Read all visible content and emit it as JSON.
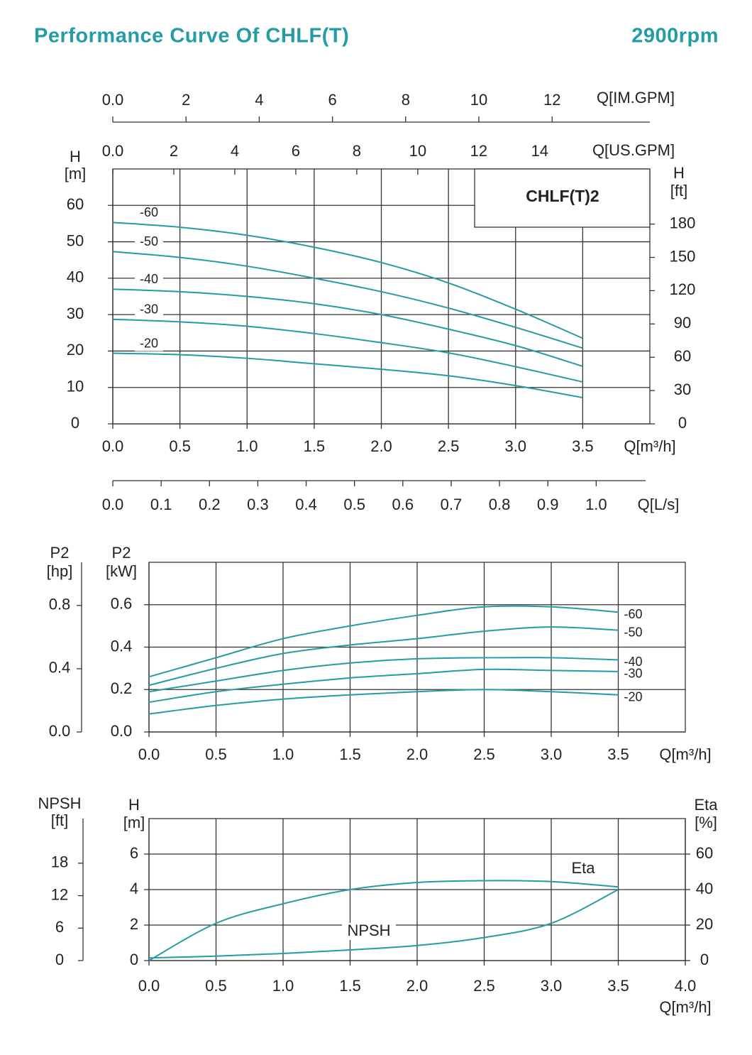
{
  "header": {
    "title": "Performance Curve Of CHLF(T)",
    "speed": "2900rpm"
  },
  "chart_data": [
    {
      "type": "line",
      "model": "CHLF(T)2",
      "grid": true,
      "color": "#239ca6",
      "xlabel": "Q[m³/h]",
      "xlim": [
        0,
        4
      ],
      "xticks": [
        {
          "value": 0,
          "label": "0.0"
        },
        0.5,
        {
          "value": 1,
          "label": "1.0"
        },
        1.5,
        {
          "value": 2,
          "label": "2.0"
        },
        2.5,
        {
          "value": 3,
          "label": "3.0"
        },
        3.5
      ],
      "ylabel": [
        "H",
        "[m]"
      ],
      "ylim": [
        0,
        70
      ],
      "yticks": [
        0,
        10,
        20,
        30,
        40,
        50,
        60
      ],
      "y2label": [
        "H",
        "[ft]"
      ],
      "y2lim": [
        0,
        229.66
      ],
      "y2ticks": [
        0,
        30,
        60,
        90,
        120,
        150,
        180
      ],
      "x2axes": [
        {
          "label": "Q[US.GPM]",
          "lim": [
            0,
            17.61
          ],
          "ticks": [
            {
              "value": 0,
              "label": "0.0"
            },
            2,
            4,
            6,
            8,
            10,
            12,
            14
          ]
        },
        {
          "label": "Q[IM.GPM]",
          "lim": [
            0,
            14.67
          ],
          "ticks": [
            {
              "value": 0,
              "label": "0.0"
            },
            2,
            4,
            6,
            8,
            10,
            12
          ]
        },
        {
          "label": "Q[L/s]",
          "lim": [
            0,
            1.111
          ],
          "ticks": [
            {
              "value": 0,
              "label": "0.0"
            },
            0.1,
            0.2,
            0.3,
            0.4,
            0.5,
            0.6,
            0.7,
            0.8,
            0.9,
            {
              "value": 1,
              "label": "1.0"
            }
          ]
        }
      ],
      "x": [
        0,
        0.5,
        1,
        1.5,
        2,
        2.5,
        3,
        3.5
      ],
      "series": [
        {
          "name": "-60",
          "values": [
            55.3,
            54,
            51.8,
            48.5,
            44.3,
            38.7,
            31.5,
            23.5
          ]
        },
        {
          "name": "-50",
          "values": [
            47.3,
            45.7,
            43.3,
            40,
            36.3,
            31.8,
            26.5,
            20.8
          ]
        },
        {
          "name": "-40",
          "values": [
            37,
            36.3,
            35,
            33,
            30,
            26,
            21.5,
            15.8
          ]
        },
        {
          "name": "-30",
          "values": [
            28.7,
            28,
            26.8,
            24.8,
            22.3,
            19.5,
            15.7,
            11.5
          ]
        },
        {
          "name": "-20",
          "values": [
            19.4,
            19,
            18,
            16.5,
            15,
            13.2,
            10.5,
            7.2
          ]
        }
      ]
    },
    {
      "type": "line",
      "grid": true,
      "color": "#239ca6",
      "xlabel": "Q[m³/h]",
      "xlim": [
        0,
        4
      ],
      "xticks": [
        {
          "value": 0,
          "label": "0.0"
        },
        0.5,
        {
          "value": 1,
          "label": "1.0"
        },
        1.5,
        {
          "value": 2,
          "label": "2.0"
        },
        2.5,
        {
          "value": 3,
          "label": "3.0"
        },
        3.5
      ],
      "ylabel": [
        "P2",
        "[kW]"
      ],
      "ylim": [
        0,
        0.8
      ],
      "yticks": [
        {
          "value": 0,
          "label": "0.0"
        },
        0.2,
        0.4,
        0.6
      ],
      "y2label": [
        "P2",
        "[hp]"
      ],
      "y2lim": [
        0,
        1.073
      ],
      "y2ticks": [
        {
          "value": 0,
          "label": "0.0"
        },
        0.4,
        0.8
      ],
      "x": [
        0,
        0.5,
        1,
        1.5,
        2,
        2.5,
        3,
        3.5
      ],
      "series": [
        {
          "name": "-60",
          "values": [
            0.26,
            0.35,
            0.44,
            0.5,
            0.55,
            0.59,
            0.59,
            0.565
          ]
        },
        {
          "name": "-50",
          "values": [
            0.22,
            0.3,
            0.37,
            0.41,
            0.44,
            0.475,
            0.495,
            0.48
          ]
        },
        {
          "name": "-40",
          "values": [
            0.19,
            0.24,
            0.29,
            0.325,
            0.345,
            0.35,
            0.35,
            0.34
          ]
        },
        {
          "name": "-30",
          "values": [
            0.14,
            0.19,
            0.225,
            0.255,
            0.275,
            0.295,
            0.29,
            0.285
          ]
        },
        {
          "name": "-20",
          "values": [
            0.085,
            0.125,
            0.155,
            0.175,
            0.19,
            0.2,
            0.19,
            0.175
          ]
        }
      ]
    },
    {
      "type": "line",
      "grid": true,
      "color": "#239ca6",
      "xlabel": "Q[m³/h]",
      "xlim": [
        0,
        4
      ],
      "xticks": [
        {
          "value": 0,
          "label": "0.0"
        },
        0.5,
        {
          "value": 1,
          "label": "1.0"
        },
        1.5,
        {
          "value": 2,
          "label": "2.0"
        },
        2.5,
        {
          "value": 3,
          "label": "3.0"
        },
        3.5,
        {
          "value": 4,
          "label": "4.0"
        }
      ],
      "ylabel": [
        "H",
        "[m]"
      ],
      "ylim": [
        0,
        8
      ],
      "yticks": [
        0,
        2,
        4,
        6
      ],
      "y2label": [
        "Eta",
        "[%]"
      ],
      "y2lim": [
        0,
        80
      ],
      "y2ticks": [
        0,
        20,
        40,
        60
      ],
      "y3label": [
        "NPSH",
        "[ft]"
      ],
      "y3lim": [
        0,
        26.25
      ],
      "y3ticks": [
        0,
        6,
        12,
        18
      ],
      "x": [
        0,
        0.5,
        1,
        1.5,
        2,
        2.5,
        3,
        3.5
      ],
      "series": [
        {
          "name": "NPSH",
          "values": [
            0.15,
            0.25,
            0.4,
            0.6,
            0.85,
            1.3,
            2.1,
            4.0
          ]
        },
        {
          "name": "Eta",
          "axis": "y2",
          "values": [
            0,
            21,
            32,
            40,
            44,
            45,
            44.5,
            41.5
          ]
        }
      ]
    }
  ]
}
